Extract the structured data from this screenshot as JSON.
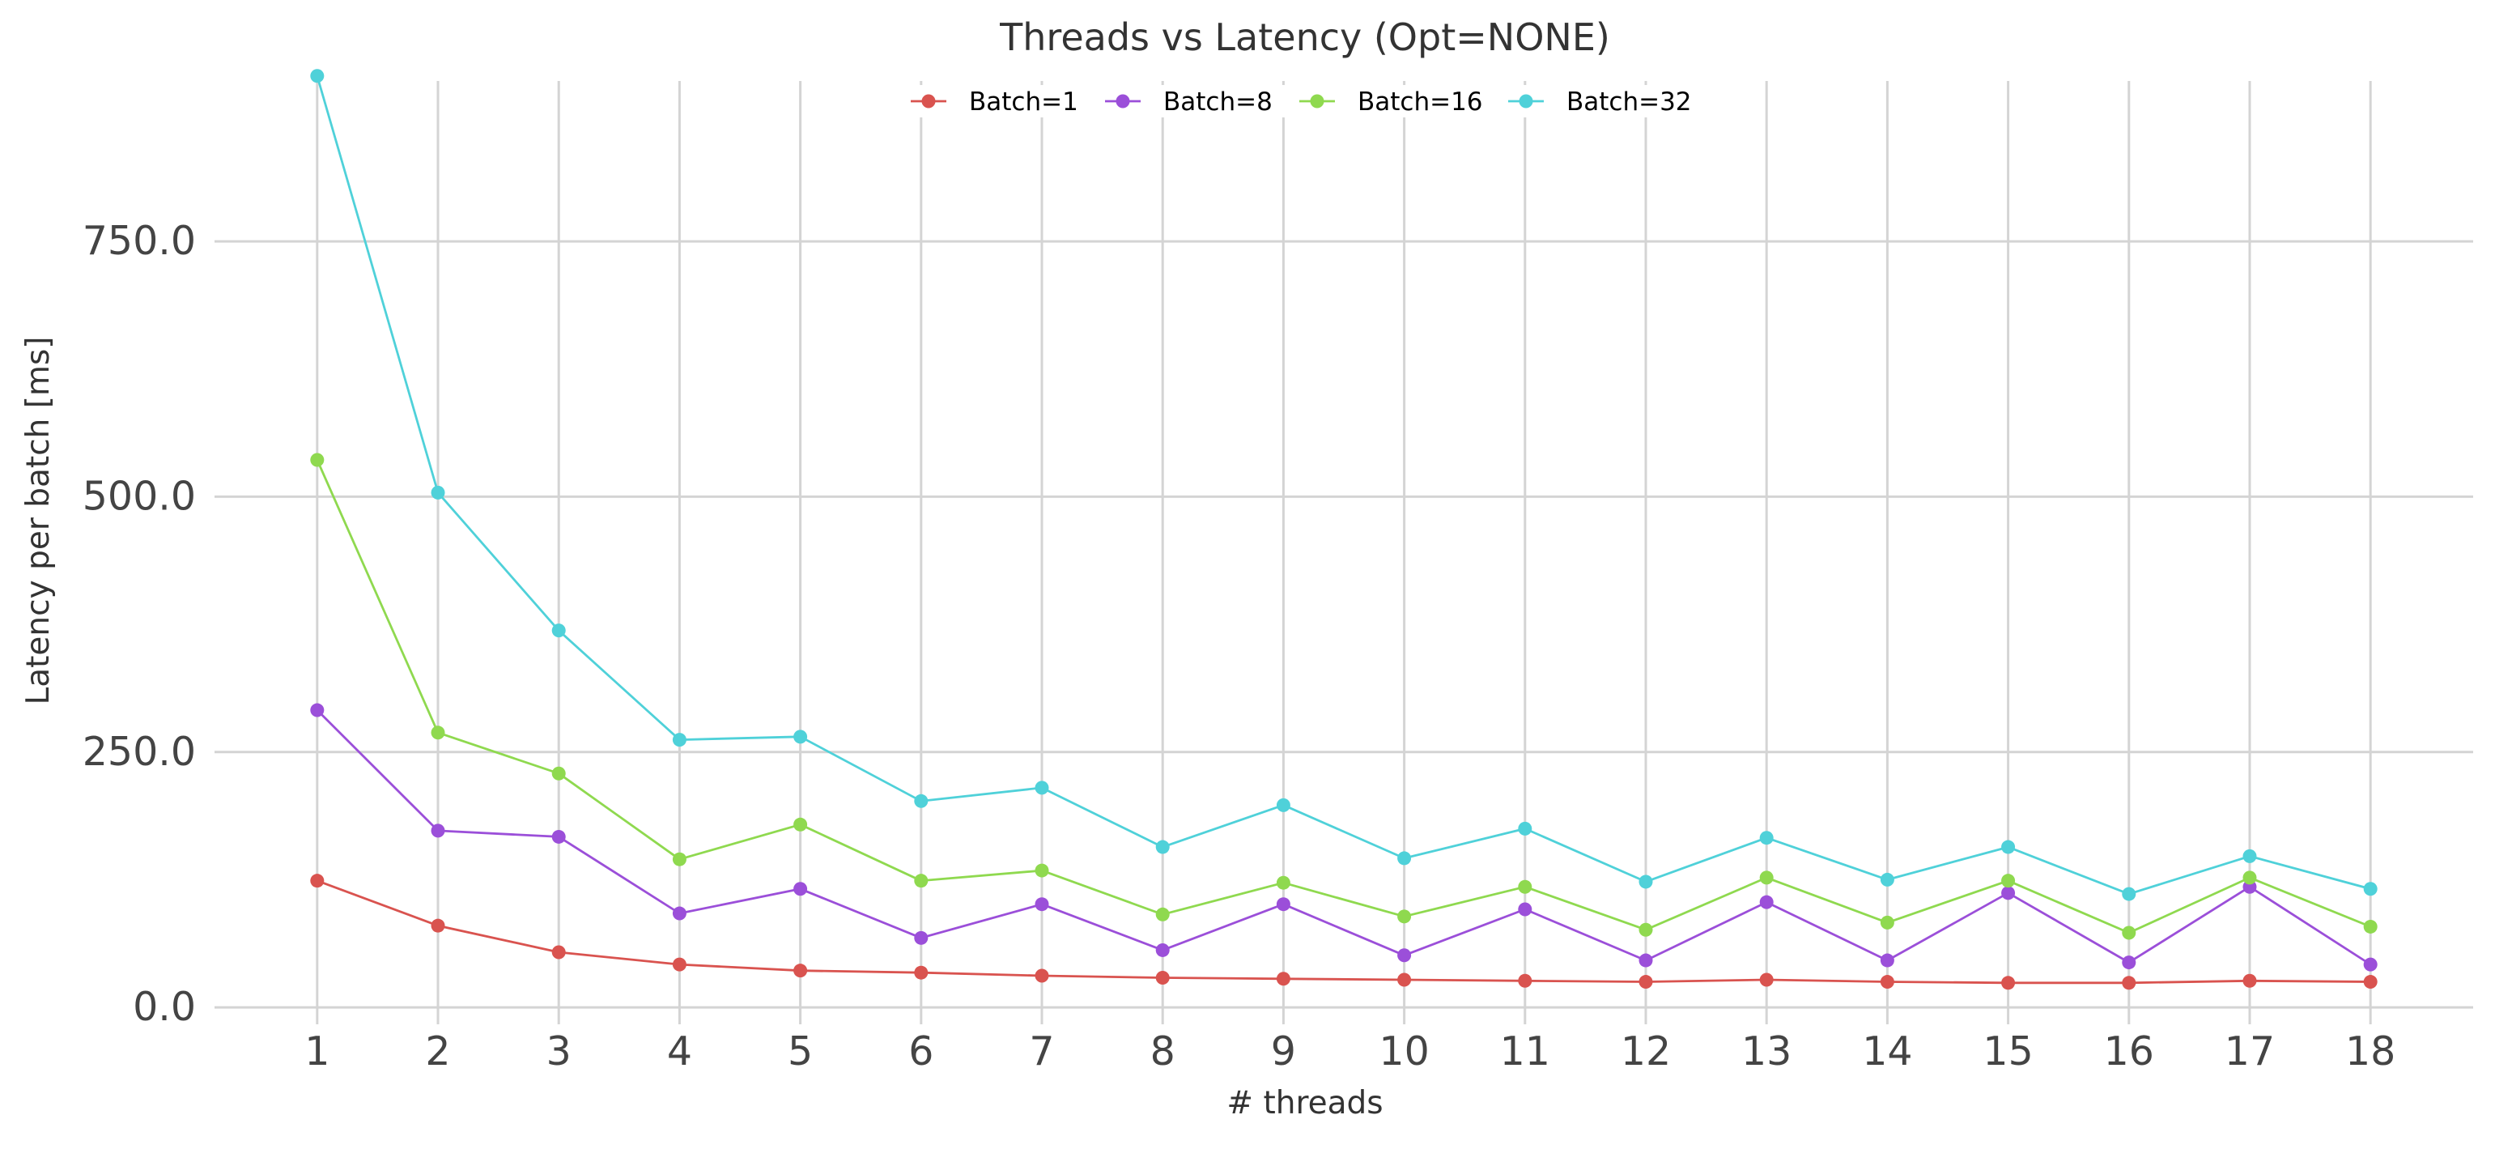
{
  "chart_data": {
    "type": "line",
    "title": "Threads vs Latency (Opt=NONE)",
    "xlabel": "# threads",
    "ylabel": "Latency per batch [ms]",
    "x": [
      1,
      2,
      3,
      4,
      5,
      6,
      7,
      8,
      9,
      10,
      11,
      12,
      13,
      14,
      15,
      16,
      17,
      18
    ],
    "xlim": [
      0.15,
      18.85
    ],
    "ylim": [
      -15,
      915
    ],
    "yticks": [
      0,
      250,
      500,
      750
    ],
    "ytick_labels": [
      "0.0",
      "250.0",
      "500.0",
      "750.0"
    ],
    "grid": true,
    "legend_position": "top-center",
    "series": [
      {
        "name": "Batch=1",
        "color": "#d9534f",
        "values": [
          124,
          80,
          54,
          42,
          36,
          34,
          31,
          29,
          28,
          27,
          26,
          25,
          27,
          25,
          24,
          24,
          26,
          25
        ]
      },
      {
        "name": "Batch=8",
        "color": "#9b4fd9",
        "values": [
          291,
          173,
          167,
          92,
          116,
          68,
          101,
          56,
          101,
          51,
          96,
          46,
          103,
          46,
          112,
          44,
          118,
          42
        ]
      },
      {
        "name": "Batch=16",
        "color": "#8fd94f",
        "values": [
          536,
          269,
          229,
          145,
          179,
          124,
          134,
          91,
          122,
          89,
          118,
          76,
          127,
          83,
          124,
          73,
          127,
          79
        ]
      },
      {
        "name": "Batch=32",
        "color": "#4fd1d9",
        "values": [
          912,
          504,
          369,
          262,
          265,
          202,
          215,
          157,
          198,
          146,
          175,
          123,
          166,
          125,
          157,
          111,
          148,
          116
        ]
      }
    ]
  }
}
